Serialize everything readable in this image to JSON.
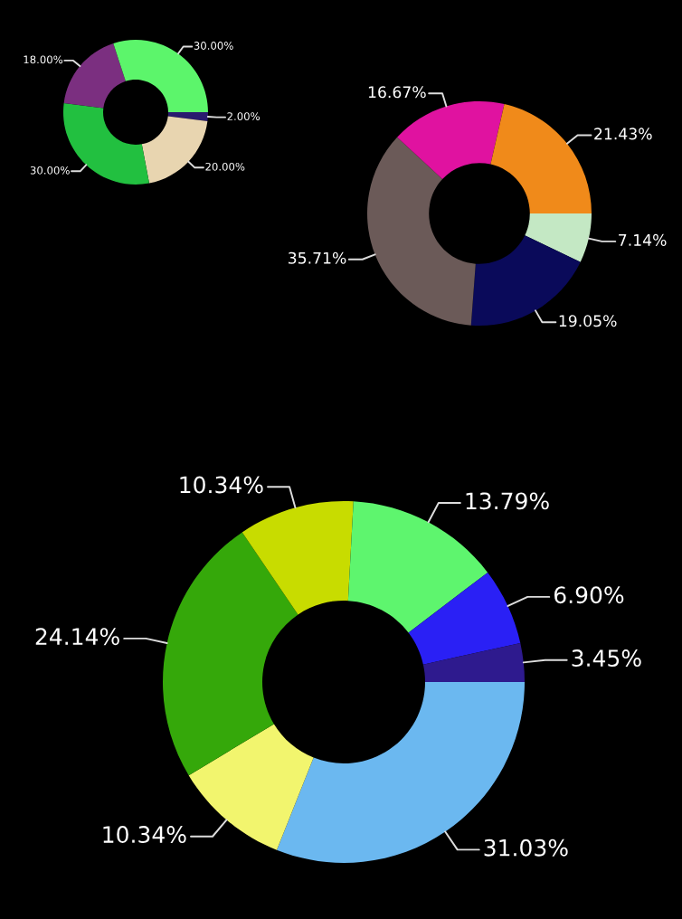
{
  "chart_data": [
    {
      "type": "donut",
      "categories": [
        null,
        null,
        null,
        null,
        null
      ],
      "values": [
        2,
        20,
        30,
        18,
        30
      ],
      "value_labels": [
        "2.00%",
        "20.00%",
        "30.00%",
        "18.00%",
        "30.00%"
      ],
      "colors": [
        "#2a1a6e",
        "#e8d5b0",
        "#22c040",
        "#7b2f80",
        "#5cf56b"
      ]
    },
    {
      "type": "donut",
      "categories": [
        null,
        null,
        null,
        null,
        null
      ],
      "values": [
        7.14,
        19.05,
        35.71,
        16.67,
        21.43
      ],
      "value_labels": [
        "7.14%",
        "19.05%",
        "35.71%",
        "16.67%",
        "21.43%"
      ],
      "colors": [
        "#c4e8c4",
        "#0a0a5a",
        "#6b5a58",
        "#e012a0",
        "#f08a1a"
      ]
    },
    {
      "type": "donut",
      "categories": [
        null,
        null,
        null,
        null,
        null,
        null,
        null
      ],
      "values": [
        31.03,
        10.34,
        24.14,
        10.34,
        13.79,
        6.9,
        3.45
      ],
      "value_labels": [
        "31.03%",
        "10.34%",
        "24.14%",
        "10.34%",
        "13.79%",
        "6.90%",
        "3.45%"
      ],
      "colors": [
        "#6bb8f0",
        "#f2f56e",
        "#35a80a",
        "#c8dc00",
        "#5ef56e",
        "#2a20f5",
        "#2e1a8e"
      ]
    }
  ]
}
